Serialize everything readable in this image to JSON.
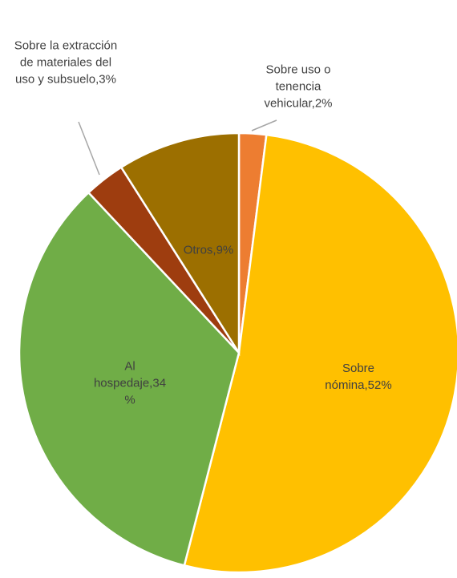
{
  "chart_data": {
    "type": "pie",
    "values": [
      2,
      52,
      34,
      3,
      9
    ],
    "value_labels": [
      "Sobre uso o tenencia vehicular,2%",
      "Sobre nómina,52%",
      "Al hospedaje,34 %",
      "Sobre la extracción de materiales del uso y subsuelo,3%",
      "Otros,9%"
    ],
    "colors": [
      "#ed7d31",
      "#ffc000",
      "#70ad47",
      "#9e3d0f",
      "#9c6f00"
    ]
  }
}
